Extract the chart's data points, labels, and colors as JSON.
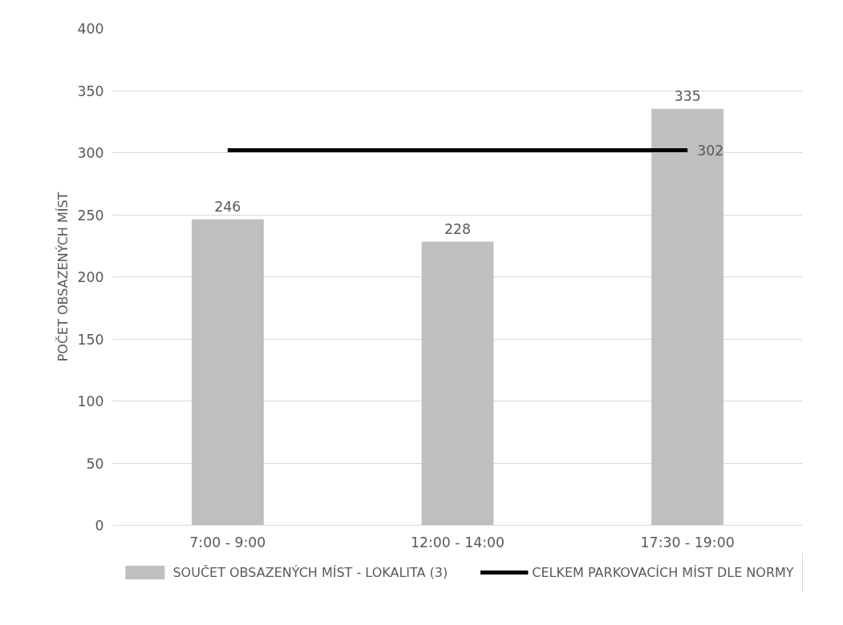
{
  "chart_data": {
    "type": "bar",
    "ylabel": "POČET OBSAZENÝCH MÍST",
    "categories": [
      "7:00 - 9:00",
      "12:00 - 14:00",
      "17:30 - 19:00"
    ],
    "series": [
      {
        "name": "SOUČET OBSAZENÝCH MÍST - LOKALITA (3)",
        "color": "#bfbfbf",
        "values": [
          246,
          228,
          335
        ],
        "value_labels": [
          "246",
          "228",
          "335"
        ]
      },
      {
        "name": "CELKEM PARKOVACÍCH MÍST DLE NORMY",
        "type": "line",
        "color": "#000000",
        "values": [
          302,
          302,
          302
        ],
        "value_labels": [
          null,
          null,
          "302"
        ],
        "marker": "none",
        "line_style": "solid"
      }
    ],
    "ylim": [
      0,
      400
    ],
    "yticks": [
      0,
      50,
      100,
      150,
      200,
      250,
      300,
      350,
      400
    ],
    "grid": "y",
    "legend": "bottom"
  }
}
